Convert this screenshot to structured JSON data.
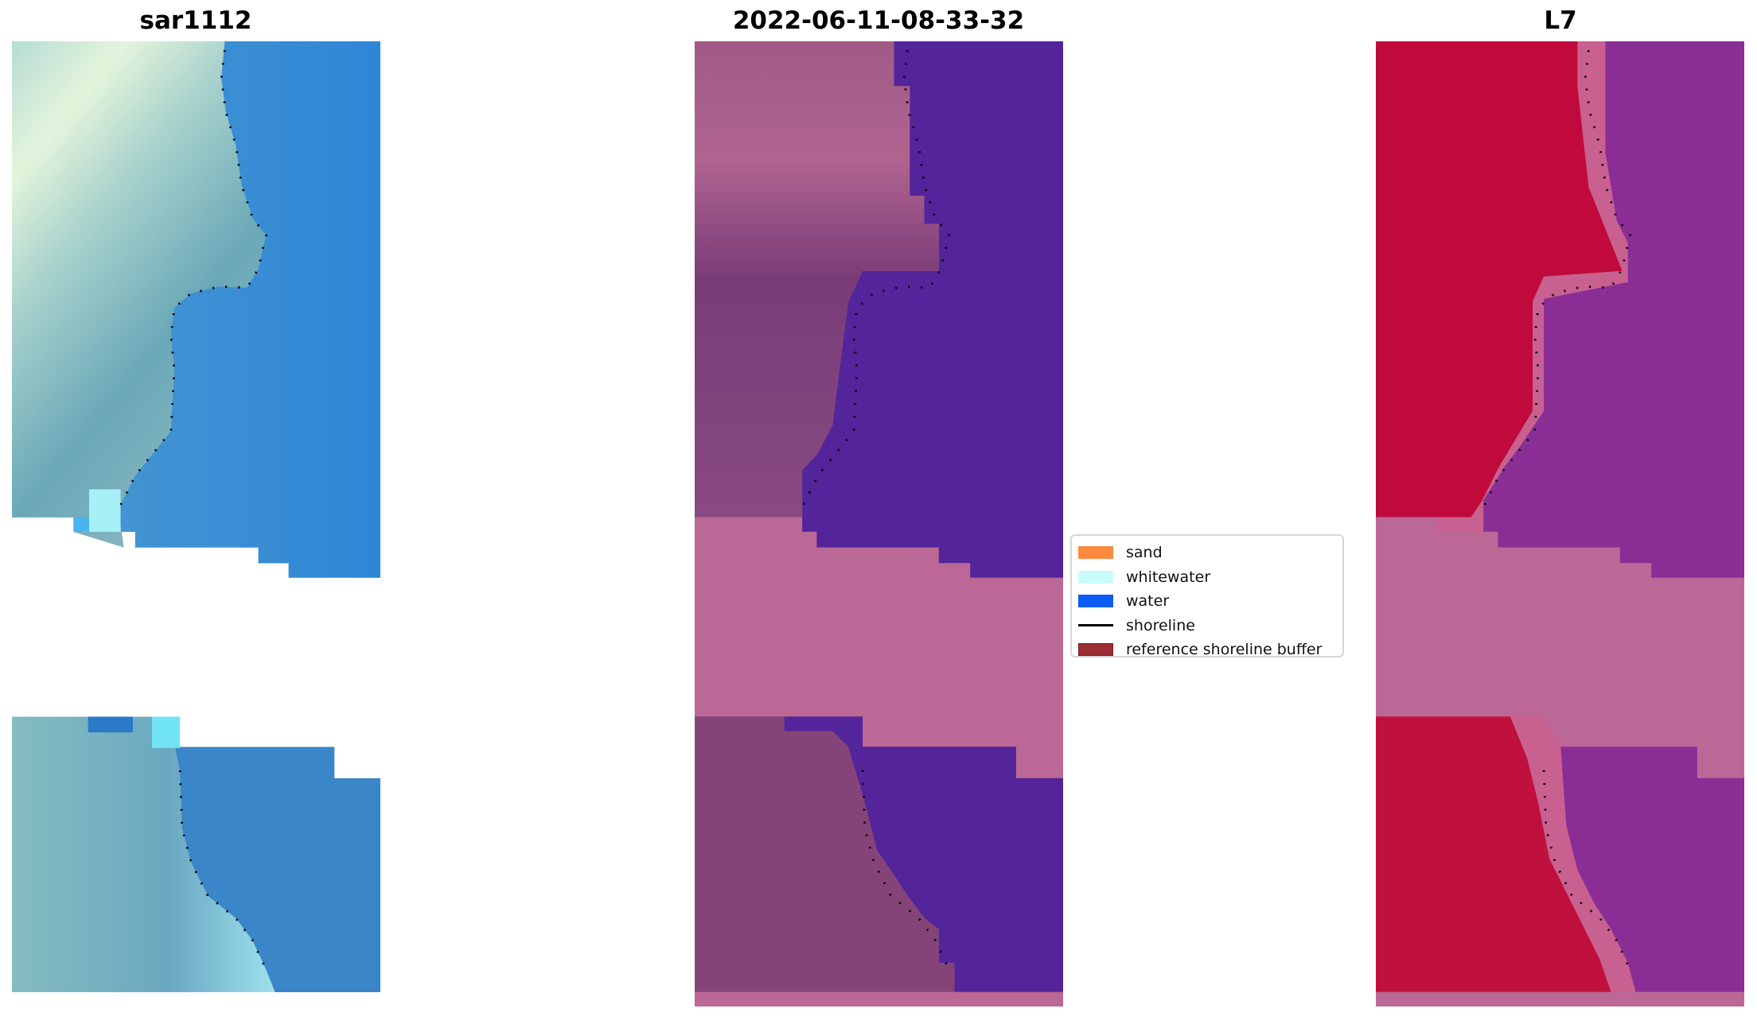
{
  "panels": [
    {
      "title": "sar1112"
    },
    {
      "title": "2022-06-11-08-33-32"
    },
    {
      "title": "L7"
    }
  ],
  "legend": {
    "items": [
      {
        "label": "sand",
        "color": "#fe8a3f",
        "kind": "patch"
      },
      {
        "label": "whitewater",
        "color": "#c8fcfc",
        "kind": "patch"
      },
      {
        "label": "water",
        "color": "#0a5cf5",
        "kind": "patch"
      },
      {
        "label": "shoreline",
        "color": "#000000",
        "kind": "line"
      },
      {
        "label": "reference shoreline buffer",
        "color": "#9a2e33",
        "kind": "patch"
      }
    ]
  },
  "colors": {
    "water_class": "#54249a",
    "nodata": "#bc6896",
    "land_red": "#c00a3c",
    "water_purple": "#8a2e96"
  }
}
